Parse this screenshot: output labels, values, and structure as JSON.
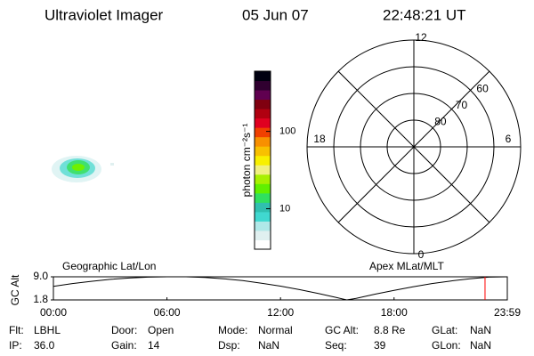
{
  "header": {
    "instrument": "Ultraviolet Imager",
    "date": "05 Jun 07",
    "time": "22:48:21 UT"
  },
  "colorbar": {
    "label": "photon cm⁻²s⁻¹",
    "log_scale": true,
    "lim": [
      3,
      600
    ],
    "ticks": [
      10,
      100
    ],
    "colors": [
      "#ffffff",
      "#e0f0f0",
      "#b0e8e8",
      "#40d8d0",
      "#30c0b0",
      "#30e060",
      "#60f000",
      "#a8f000",
      "#f0f080",
      "#f8f000",
      "#f8c000",
      "#f89000",
      "#f04000",
      "#e00020",
      "#b00010",
      "#800010",
      "#600050",
      "#300030",
      "#000010"
    ]
  },
  "polar": {
    "rlim": [
      90,
      50
    ],
    "rings": [
      80,
      70,
      60
    ],
    "mlt_ticks": [
      12,
      18,
      6,
      0
    ]
  },
  "orbit": {
    "left_label": "Geographic Lat/Lon",
    "right_label": "Apex MLat/MLT",
    "ylabel": "GC Alt",
    "ylim": [
      1.8,
      9.0
    ],
    "yticks": [
      {
        "value": 9.0,
        "label": "9.0"
      },
      1.8
    ],
    "xlim": [
      0,
      23.9833
    ],
    "xticks": [
      {
        "value": 0,
        "label": "00:00"
      },
      {
        "value": 6,
        "label": "06:00"
      },
      {
        "value": 12,
        "label": "12:00"
      },
      {
        "value": 18,
        "label": "18:00"
      },
      {
        "value": 23.9833,
        "label": "23:59"
      }
    ],
    "x": [
      0,
      1,
      2,
      3,
      4,
      5,
      6,
      7,
      8,
      9,
      10,
      11,
      12,
      13,
      14,
      15,
      15.5,
      16,
      17,
      18,
      19,
      20,
      21,
      22,
      23,
      23.9833
    ],
    "altitude": [
      6.0,
      6.9,
      7.6,
      8.2,
      8.6,
      8.9,
      9.0,
      9.0,
      8.8,
      8.4,
      7.8,
      7.0,
      6.1,
      5.0,
      3.8,
      2.5,
      1.8,
      2.3,
      3.6,
      4.8,
      5.9,
      6.9,
      7.7,
      8.4,
      8.9,
      9.0
    ],
    "marker_hour": 22.806,
    "marker_color": "#ff0000"
  },
  "info": {
    "rows": [
      [
        [
          "Flt:",
          "LBHL"
        ],
        [
          "Door:",
          "Open"
        ],
        [
          "Mode:",
          "Normal"
        ],
        [
          "GC Alt:",
          "8.8 Re"
        ],
        [
          "GLat:",
          "NaN"
        ]
      ],
      [
        [
          "IP:",
          "36.0"
        ],
        [
          "Gain:",
          "14"
        ],
        [
          "Dsp:",
          "NaN"
        ],
        [
          "Seq:",
          "39"
        ],
        [
          "GLon:",
          "NaN"
        ]
      ]
    ]
  }
}
